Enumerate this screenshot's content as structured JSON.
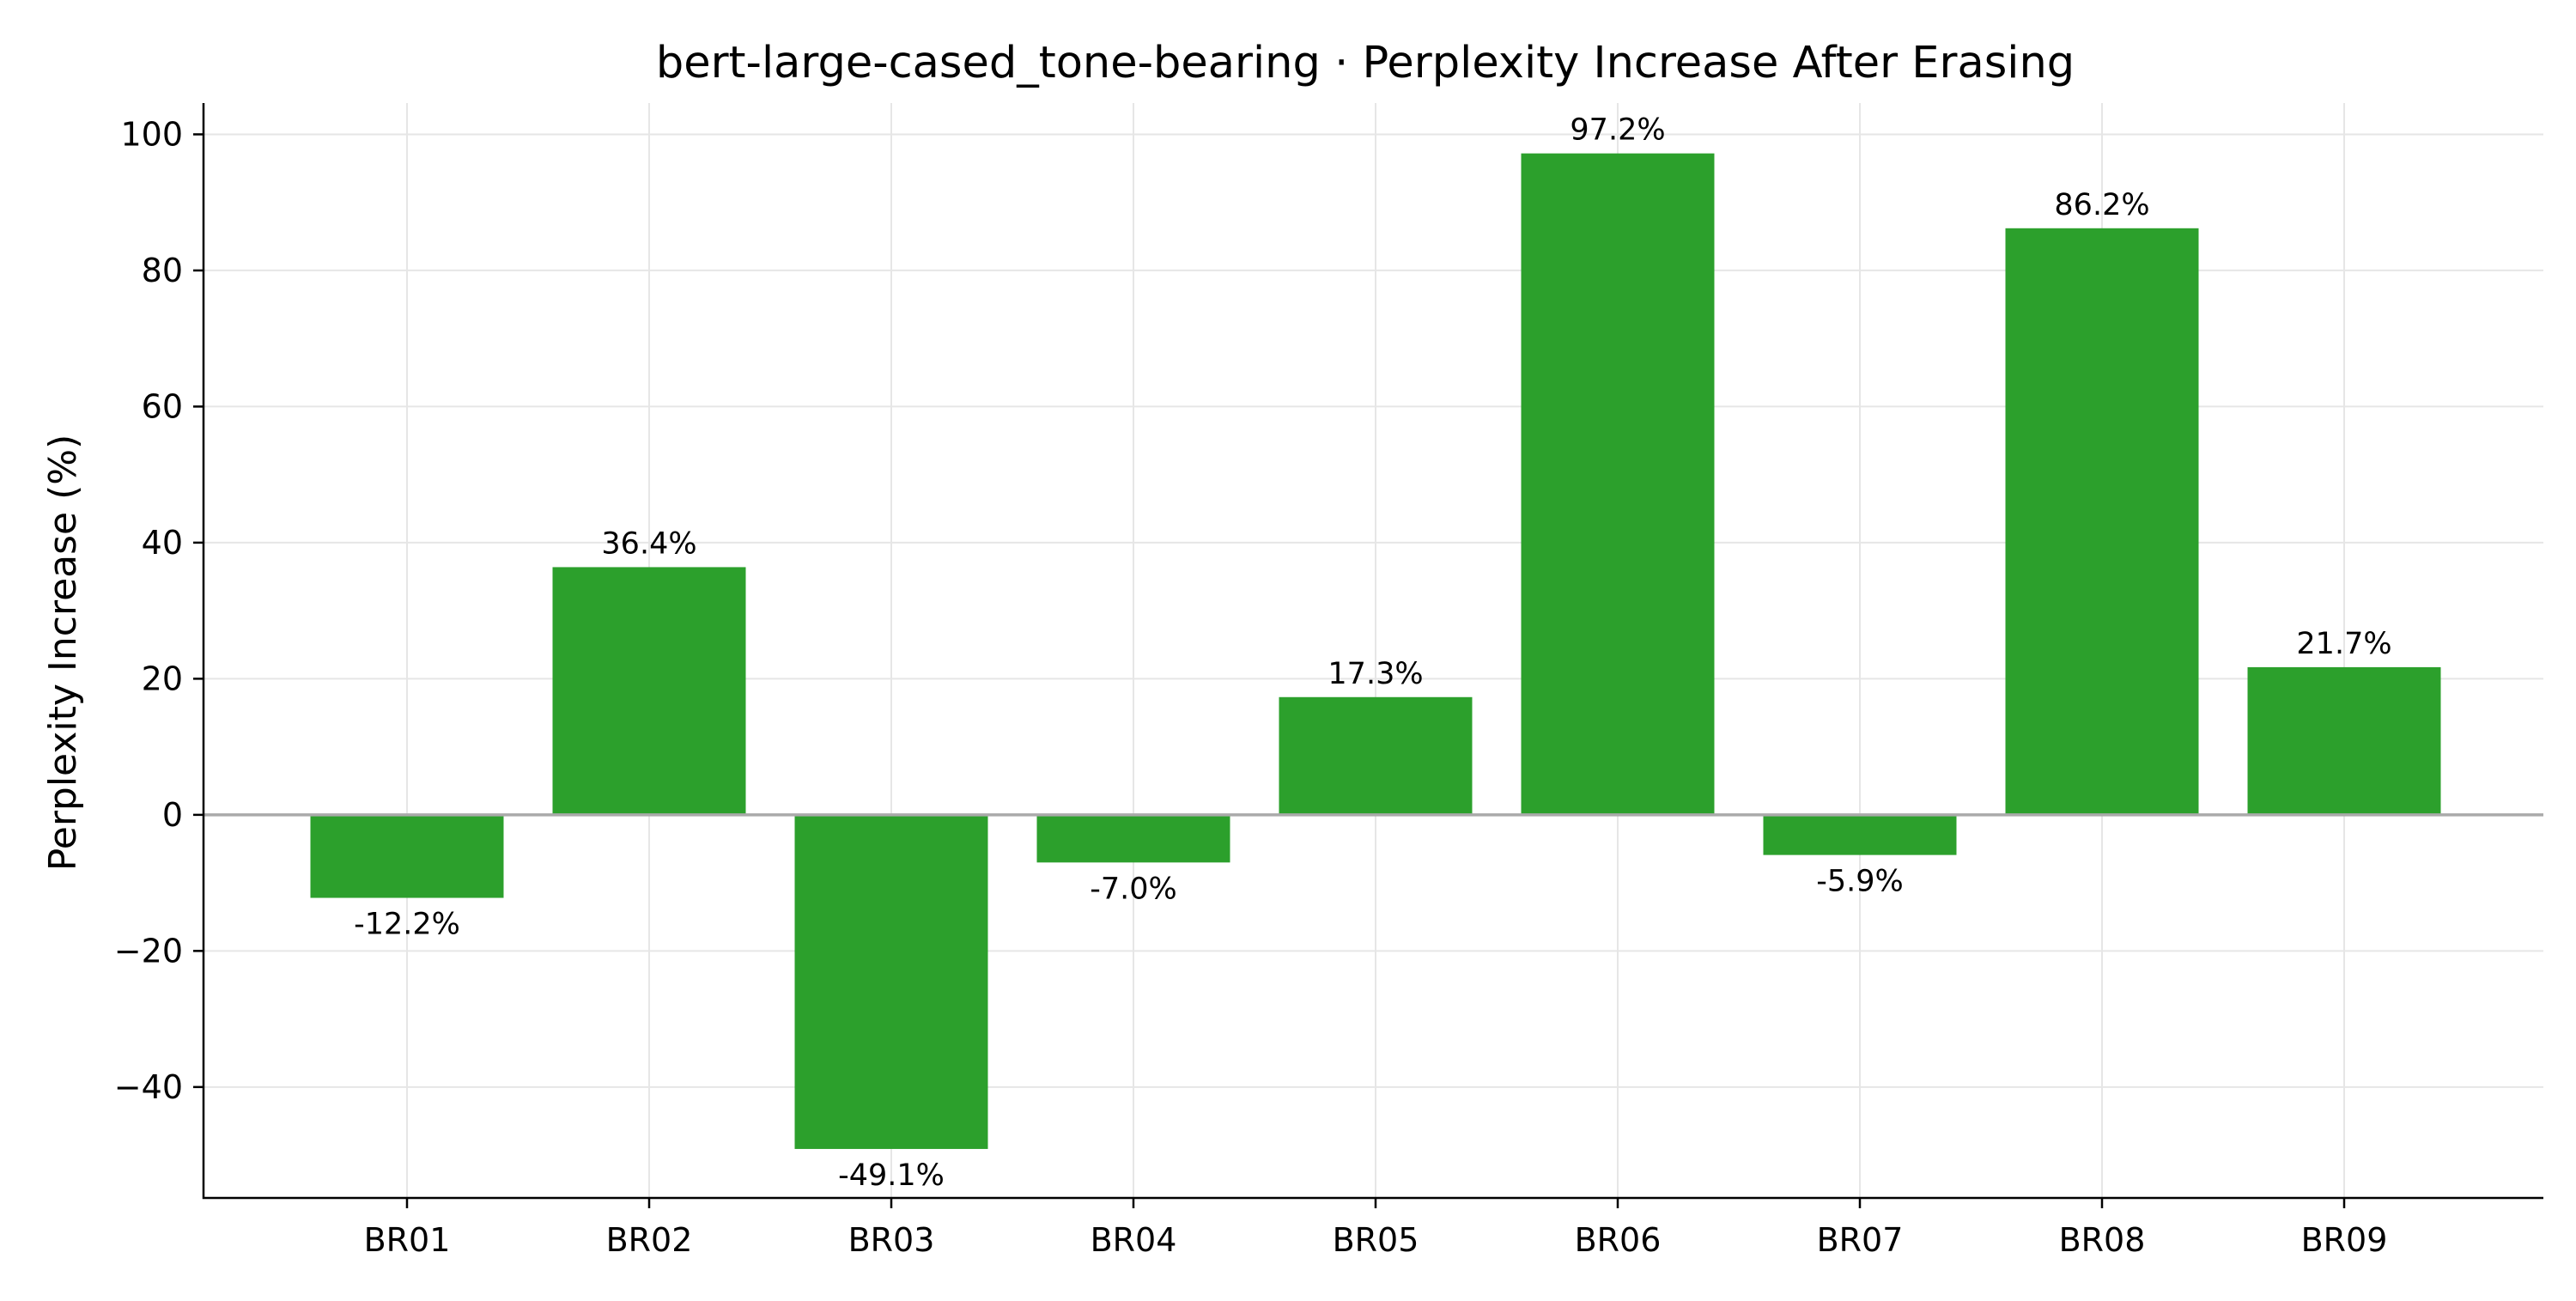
{
  "chart_data": {
    "type": "bar",
    "title": "bert-large-cased_tone-bearing · Perplexity Increase After Erasing",
    "xlabel": "",
    "ylabel": "Perplexity Increase (%)",
    "categories": [
      "BR01",
      "BR02",
      "BR03",
      "BR04",
      "BR05",
      "BR06",
      "BR07",
      "BR08",
      "BR09"
    ],
    "values": [
      -12.2,
      36.4,
      -49.1,
      -7.0,
      17.3,
      97.2,
      -5.9,
      86.2,
      21.7
    ],
    "value_labels": [
      "-12.2%",
      "36.4%",
      "-49.1%",
      "-7.0%",
      "17.3%",
      "97.2%",
      "-5.9%",
      "86.2%",
      "21.7%"
    ],
    "ylim": [
      -56.3,
      104.6
    ],
    "yticks": [
      -40,
      -20,
      0,
      20,
      40,
      60,
      80,
      100
    ],
    "ytick_labels": [
      "−40",
      "−20",
      "0",
      "20",
      "40",
      "60",
      "80",
      "100"
    ],
    "grid": true,
    "bar_color": "#2ca02c",
    "zero_line_color": "#aaaaaa"
  }
}
